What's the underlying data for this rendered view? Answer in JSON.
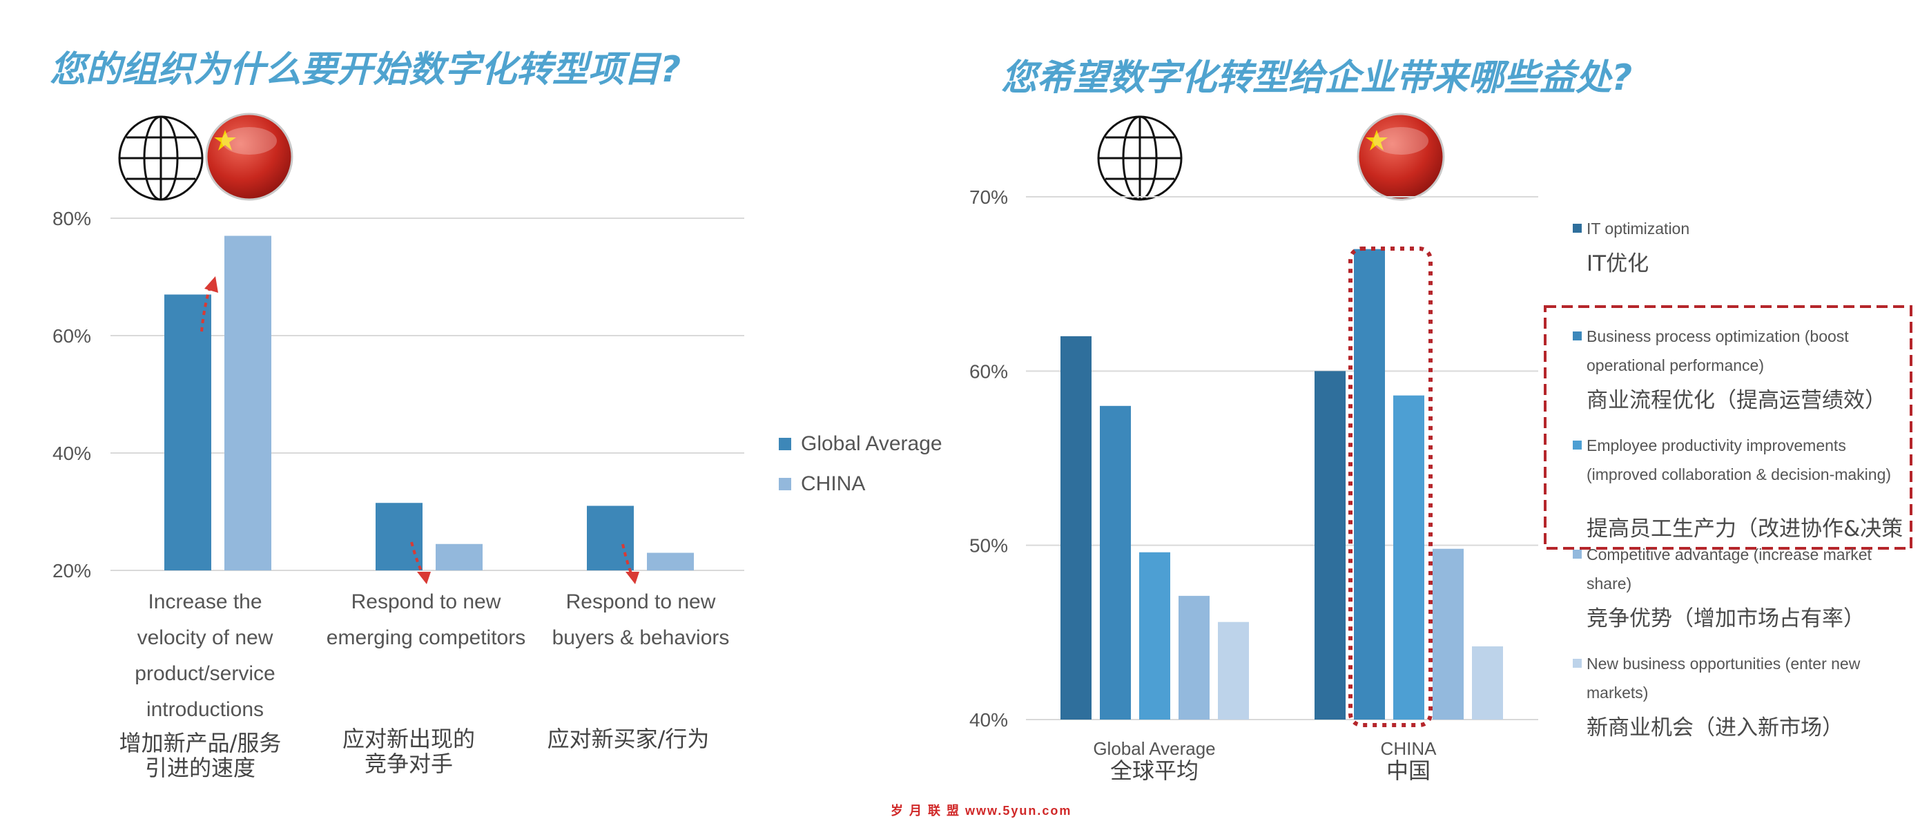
{
  "colors": {
    "title": "#4fa3cf",
    "bar_global": "#3d87b8",
    "bar_china": "#93b8dc",
    "annotation_red": "#c0272d"
  },
  "left": {
    "title": "您的组织为什么要开始数字化转型项目?",
    "icons": [
      "globe-icon",
      "china-flag-icon"
    ],
    "legend": [
      {
        "label": "Global Average"
      },
      {
        "label": "CHINA"
      }
    ],
    "categories": [
      {
        "en": "Increase the velocity of new product/service introductions",
        "cn_line1": "增加新产品/服务",
        "cn_line2": "引进的速度"
      },
      {
        "en": "Respond to new emerging competitors",
        "cn_line1": "应对新出现的",
        "cn_line2": "竞争对手"
      },
      {
        "en": "Respond to new buyers & behaviors",
        "cn_line1": "应对新买家/行为",
        "cn_line2": ""
      }
    ]
  },
  "right": {
    "title": "您希望数字化转型给企业带来哪些益处?",
    "icons": [
      "globe-icon",
      "china-flag-icon"
    ],
    "groups": [
      {
        "en": "Global Average",
        "cn": "全球平均"
      },
      {
        "en": "CHINA",
        "cn": "中国"
      }
    ],
    "legend": [
      {
        "en": "IT optimization",
        "cn": "IT优化"
      },
      {
        "en": "Business process optimization (boost operational performance)",
        "cn": "商业流程优化（提高运营绩效）"
      },
      {
        "en": "Employee productivity improvements (improved collaboration & decision-making)",
        "cn": "提高员工生产力（改进协作&决策"
      },
      {
        "en": "Competitive advantage (increase market share)",
        "cn": "竞争优势（增加市场占有率）"
      },
      {
        "en": "New business opportunities (enter new markets)",
        "cn": "新商业机会（进入新市场）"
      }
    ]
  },
  "watermark": "岁 月 联 盟   www.5yun.com",
  "chart_data": [
    {
      "type": "bar",
      "title": "您的组织为什么要开始数字化转型项目?",
      "categories": [
        "Increase the velocity of new product/service introductions",
        "Respond to new emerging competitors",
        "Respond to new buyers & behaviors"
      ],
      "series": [
        {
          "name": "Global Average",
          "values": [
            67,
            31.5,
            31
          ],
          "color": "#3d87b8"
        },
        {
          "name": "CHINA",
          "values": [
            77,
            24.5,
            23
          ],
          "color": "#93b8dc"
        }
      ],
      "ylim": [
        20,
        80
      ],
      "yticks": [
        "20%",
        "40%",
        "60%",
        "80%"
      ],
      "grid": true,
      "legend_position": "right"
    },
    {
      "type": "bar",
      "title": "您希望数字化转型给企业带来哪些益处?",
      "categories": [
        "Global Average",
        "CHINA"
      ],
      "series": [
        {
          "name": "IT optimization",
          "values": [
            62,
            60
          ],
          "color": "#2f6f9c"
        },
        {
          "name": "Business process optimization (boost operational performance)",
          "values": [
            58,
            67
          ],
          "color": "#3c88bb"
        },
        {
          "name": "Employee productivity improvements (improved collaboration & decision-making)",
          "values": [
            49.6,
            58.6
          ],
          "color": "#4d9fd3"
        },
        {
          "name": "Competitive advantage (increase market share)",
          "values": [
            47.1,
            49.8
          ],
          "color": "#93b9dd"
        },
        {
          "name": "New business opportunities (enter new markets)",
          "values": [
            45.6,
            44.2
          ],
          "color": "#bdd3ea"
        }
      ],
      "ylim": [
        40,
        70
      ],
      "yticks": [
        "40%",
        "50%",
        "60%",
        "70%"
      ],
      "grid": true,
      "legend_position": "right"
    }
  ]
}
